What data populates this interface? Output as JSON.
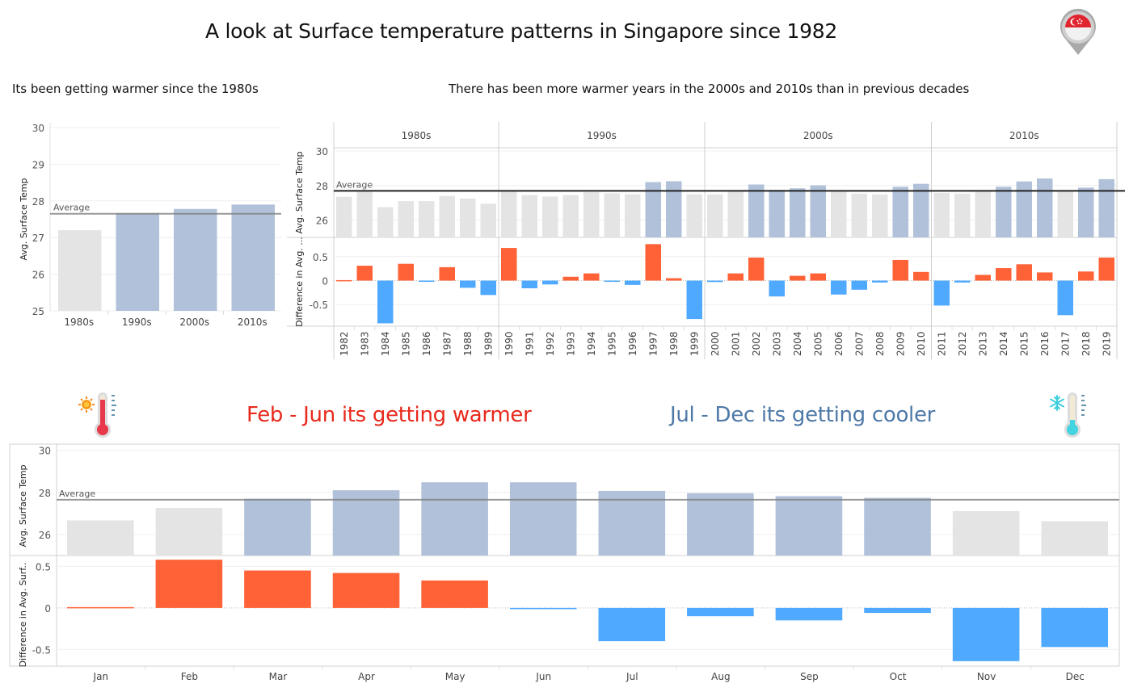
{
  "title": "A look at Surface temperature patterns in Singapore since 1982",
  "subtitles": {
    "decades": "Its been getting warmer since the 1980s",
    "years": "There has been more warmer years in the 2000s and 2010s than in previous decades"
  },
  "season_labels": {
    "warm": "Feb - Jun its getting warmer",
    "cool": "Jul - Dec its getting cooler"
  },
  "icons": {
    "top_right": "singapore-flag-pin-icon",
    "warm": "thermometer-sun-icon",
    "cool": "thermometer-snowflake-icon"
  },
  "colors": {
    "above_avg_bar": "#b0c1d9",
    "below_avg_bar": "#e4e4e4",
    "positive_diff": "#ff6236",
    "negative_diff": "#4fa9ff",
    "warm_text": "#e8291c",
    "cool_text": "#4e79a7"
  },
  "chart_data": [
    {
      "id": "decades",
      "type": "bar",
      "title": "Its been getting warmer since the 1980s",
      "ylabel": "Avg. Surface Temp",
      "xlabel": "",
      "ylim": [
        25,
        30
      ],
      "yticks": [
        25,
        26,
        27,
        28,
        29,
        30
      ],
      "reference_line": {
        "label": "Average",
        "value": 27.65
      },
      "categories": [
        "1980s",
        "1990s",
        "2000s",
        "2010s"
      ],
      "values": [
        27.2,
        27.67,
        27.78,
        27.9
      ],
      "grid": true
    },
    {
      "id": "years",
      "type": "bar",
      "title": "There has been more warmer years in the 2000s and 2010s than in previous decades",
      "groups": [
        {
          "label": "1980s",
          "years": [
            "1982",
            "1983",
            "1984",
            "1985",
            "1986",
            "1987",
            "1988",
            "1989"
          ]
        },
        {
          "label": "1990s",
          "years": [
            "1990",
            "1991",
            "1992",
            "1993",
            "1994",
            "1995",
            "1996",
            "1997",
            "1998",
            "1999"
          ]
        },
        {
          "label": "2000s",
          "years": [
            "2000",
            "2001",
            "2002",
            "2003",
            "2004",
            "2005",
            "2006",
            "2007",
            "2008",
            "2009",
            "2010"
          ]
        },
        {
          "label": "2010s",
          "years": [
            "2011",
            "2012",
            "2013",
            "2014",
            "2015",
            "2016",
            "2017",
            "2018",
            "2019"
          ]
        }
      ],
      "series": [
        {
          "name": "Avg. Surface Temp",
          "ylim": [
            25,
            30
          ],
          "yticks": [
            26,
            28,
            30
          ],
          "reference_line": {
            "label": "Average",
            "value": 27.69
          },
          "values": [
            27.35,
            27.66,
            26.75,
            27.1,
            27.1,
            27.4,
            27.25,
            26.95,
            27.68,
            27.45,
            27.37,
            27.45,
            27.62,
            27.55,
            27.5,
            28.2,
            28.25,
            27.5,
            27.49,
            27.66,
            28.06,
            27.75,
            27.84,
            28.01,
            27.66,
            27.53,
            27.49,
            27.93,
            28.1,
            27.57,
            27.53,
            27.66,
            27.93,
            28.24,
            28.41,
            27.66,
            27.88,
            28.37
          ]
        },
        {
          "name": "Difference in Avg. Surface Temp",
          "ylim": [
            -0.95,
            0.9
          ],
          "yticks": [
            0.5,
            0.0,
            -0.5
          ],
          "values": [
            0.01,
            0.31,
            -0.89,
            0.35,
            -0.02,
            0.28,
            -0.15,
            -0.3,
            0.68,
            -0.16,
            -0.08,
            0.08,
            0.15,
            -0.01,
            -0.09,
            0.76,
            0.05,
            -0.8,
            -0.03,
            0.15,
            0.48,
            -0.33,
            0.1,
            0.15,
            -0.29,
            -0.19,
            -0.04,
            0.43,
            0.18,
            -0.52,
            -0.04,
            0.12,
            0.26,
            0.34,
            0.17,
            -0.72,
            0.19,
            0.48
          ]
        }
      ],
      "grid": true
    },
    {
      "id": "months",
      "type": "bar",
      "categories": [
        "Jan",
        "Feb",
        "Mar",
        "Apr",
        "May",
        "Jun",
        "Jul",
        "Aug",
        "Sep",
        "Oct",
        "Nov",
        "Dec"
      ],
      "series": [
        {
          "name": "Avg. Surface Temp",
          "ylim": [
            25,
            30.1
          ],
          "yticks": [
            26,
            28,
            30
          ],
          "reference_line": {
            "label": "Average",
            "value": 27.65
          },
          "values": [
            26.67,
            27.26,
            27.7,
            28.1,
            28.48,
            28.48,
            28.07,
            27.96,
            27.82,
            27.74,
            27.11,
            26.63
          ]
        },
        {
          "name": "Difference in Avg. Surf..",
          "ylim": [
            -0.7,
            0.63
          ],
          "yticks": [
            0.5,
            0.0,
            -0.5
          ],
          "values": [
            0.01,
            0.58,
            0.45,
            0.42,
            0.33,
            -0.01,
            -0.4,
            -0.1,
            -0.15,
            -0.06,
            -0.64,
            -0.47
          ]
        }
      ],
      "grid": true
    }
  ]
}
